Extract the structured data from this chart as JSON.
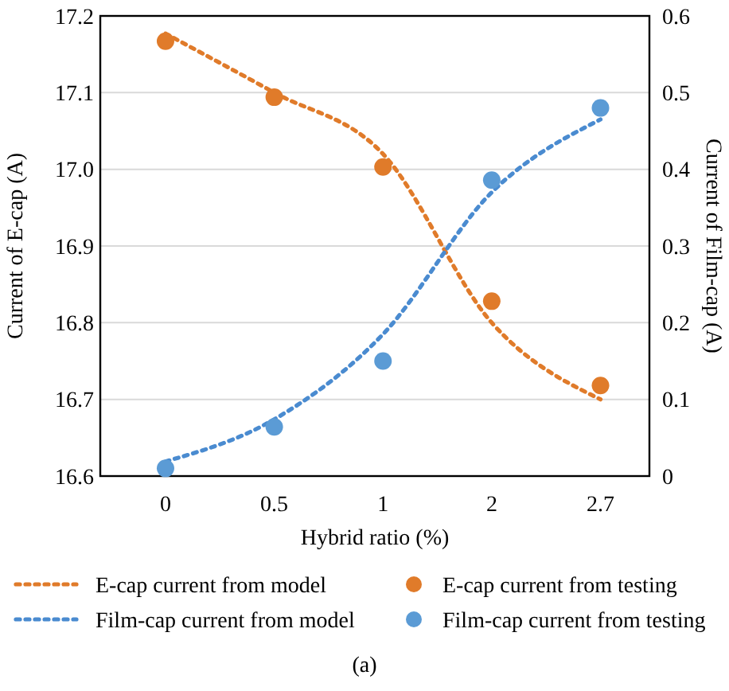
{
  "chart_data": {
    "type": "line",
    "xlabel": "Hybrid ratio (%)",
    "ylabel": "Current of E-cap (A)",
    "y2label": "Current of Film-cap (A)",
    "categories": [
      "0",
      "0.5",
      "1",
      "2",
      "2.7"
    ],
    "series": [
      {
        "name": "E-cap current from model",
        "color": "#e07b2a",
        "line_style": "dotted",
        "marker": "none",
        "values": [
          17.177,
          17.1,
          17.02,
          16.8,
          16.7
        ]
      },
      {
        "name": "Film-cap current from model",
        "color": "#4a8bd0",
        "line_style": "dotted",
        "marker": "none",
        "axis": "y2",
        "values": [
          0.019,
          0.074,
          0.185,
          0.37,
          0.465
        ]
      },
      {
        "name": "E-cap current from testing",
        "type": "scatter",
        "color": "#e07b2a",
        "marker": "circle",
        "values": [
          17.167,
          17.094,
          17.003,
          16.828,
          16.718
        ]
      },
      {
        "name": "Film-cap current from testing",
        "type": "scatter",
        "color": "#5b9bd5",
        "marker": "circle",
        "axis": "y2",
        "values": [
          0.01,
          0.064,
          0.15,
          0.386,
          0.48
        ]
      }
    ],
    "ylim": [
      16.6,
      17.2
    ],
    "yticks": [
      16.6,
      16.7,
      16.8,
      16.9,
      {
        "value": 17,
        "label": "17.0"
      },
      17.1,
      17.2
    ],
    "y2lim": [
      0,
      0.6
    ],
    "y2ticks": [
      0,
      0.1,
      0.2,
      0.3,
      0.4,
      0.5,
      0.6
    ],
    "grid": "y",
    "legend": "bottom",
    "annotations": [
      "(a)"
    ]
  }
}
